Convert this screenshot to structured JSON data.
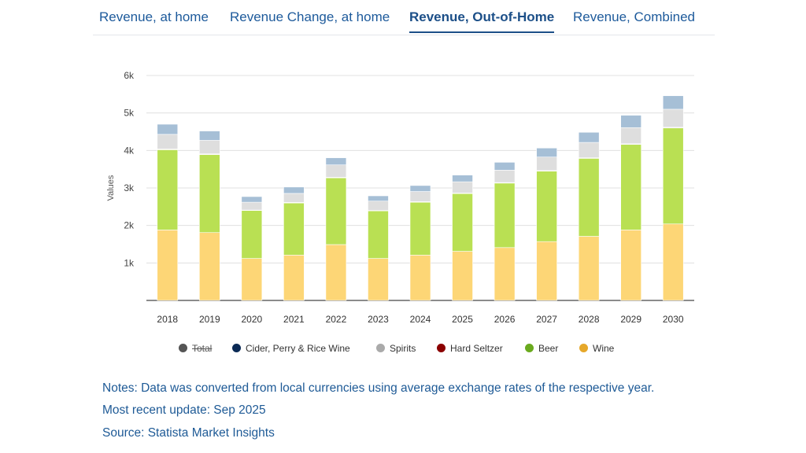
{
  "tabs": [
    {
      "label": "Revenue, at home",
      "active": false
    },
    {
      "label": "Revenue Change, at home",
      "active": false
    },
    {
      "label": "Revenue, Out-of-Home",
      "active": true
    },
    {
      "label": "Revenue, Combined",
      "active": false
    }
  ],
  "legend": [
    {
      "label": "Total",
      "color": "#555555",
      "hidden": true
    },
    {
      "label": "Cider, Perry & Rice Wine",
      "color": "#0b2a55",
      "hidden": false
    },
    {
      "label": "Spirits",
      "color": "#aaaaaa",
      "hidden": false
    },
    {
      "label": "Hard Seltzer",
      "color": "#8b0000",
      "hidden": false
    },
    {
      "label": "Beer",
      "color": "#6aaa1e",
      "hidden": false
    },
    {
      "label": "Wine",
      "color": "#e6a82a",
      "hidden": false
    }
  ],
  "notes": {
    "line1": "Notes: Data was converted from local currencies using average exchange rates of the respective year.",
    "line2": "Most recent update: Sep 2025",
    "line3": "Source: Statista Market Insights"
  },
  "chart_data": {
    "type": "bar",
    "stacked": true,
    "ylabel": "Values",
    "ylim": [
      0,
      6000
    ],
    "yticks": [
      1000,
      2000,
      3000,
      4000,
      5000,
      6000
    ],
    "ytick_labels": [
      "1k",
      "2k",
      "3k",
      "4k",
      "5k",
      "6k"
    ],
    "categories": [
      "2018",
      "2019",
      "2020",
      "2021",
      "2022",
      "2023",
      "2024",
      "2025",
      "2026",
      "2027",
      "2028",
      "2029",
      "2030"
    ],
    "series": [
      {
        "name": "Wine",
        "color": "#fdd676",
        "values": [
          1880,
          1810,
          1120,
          1210,
          1490,
          1120,
          1210,
          1310,
          1410,
          1570,
          1710,
          1880,
          2040
        ]
      },
      {
        "name": "Beer",
        "color": "#b9e053",
        "values": [
          2140,
          2080,
          1280,
          1390,
          1780,
          1270,
          1410,
          1540,
          1720,
          1880,
          2080,
          2280,
          2560
        ]
      },
      {
        "name": "Hard Seltzer",
        "color": "#f0e8e8",
        "values": [
          20,
          20,
          10,
          15,
          15,
          10,
          15,
          15,
          15,
          15,
          15,
          20,
          20
        ]
      },
      {
        "name": "Spirits",
        "color": "#dedede",
        "values": [
          390,
          360,
          210,
          240,
          330,
          250,
          270,
          300,
          330,
          360,
          410,
          430,
          480
        ]
      },
      {
        "name": "Cider, Perry & Rice Wine",
        "color": "#a6bfd6",
        "values": [
          270,
          250,
          150,
          170,
          190,
          140,
          160,
          180,
          210,
          240,
          270,
          330,
          360
        ]
      }
    ]
  }
}
